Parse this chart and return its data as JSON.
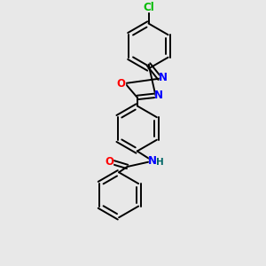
{
  "bg_color": "#e8e8e8",
  "bond_color": "#000000",
  "N_color": "#0000ff",
  "O_color": "#ff0000",
  "Cl_color": "#00bb00",
  "H_color": "#006666",
  "figsize": [
    3.0,
    3.0
  ],
  "dpi": 100,
  "xlim": [
    -2.5,
    2.5
  ],
  "ylim": [
    -4.5,
    4.5
  ]
}
